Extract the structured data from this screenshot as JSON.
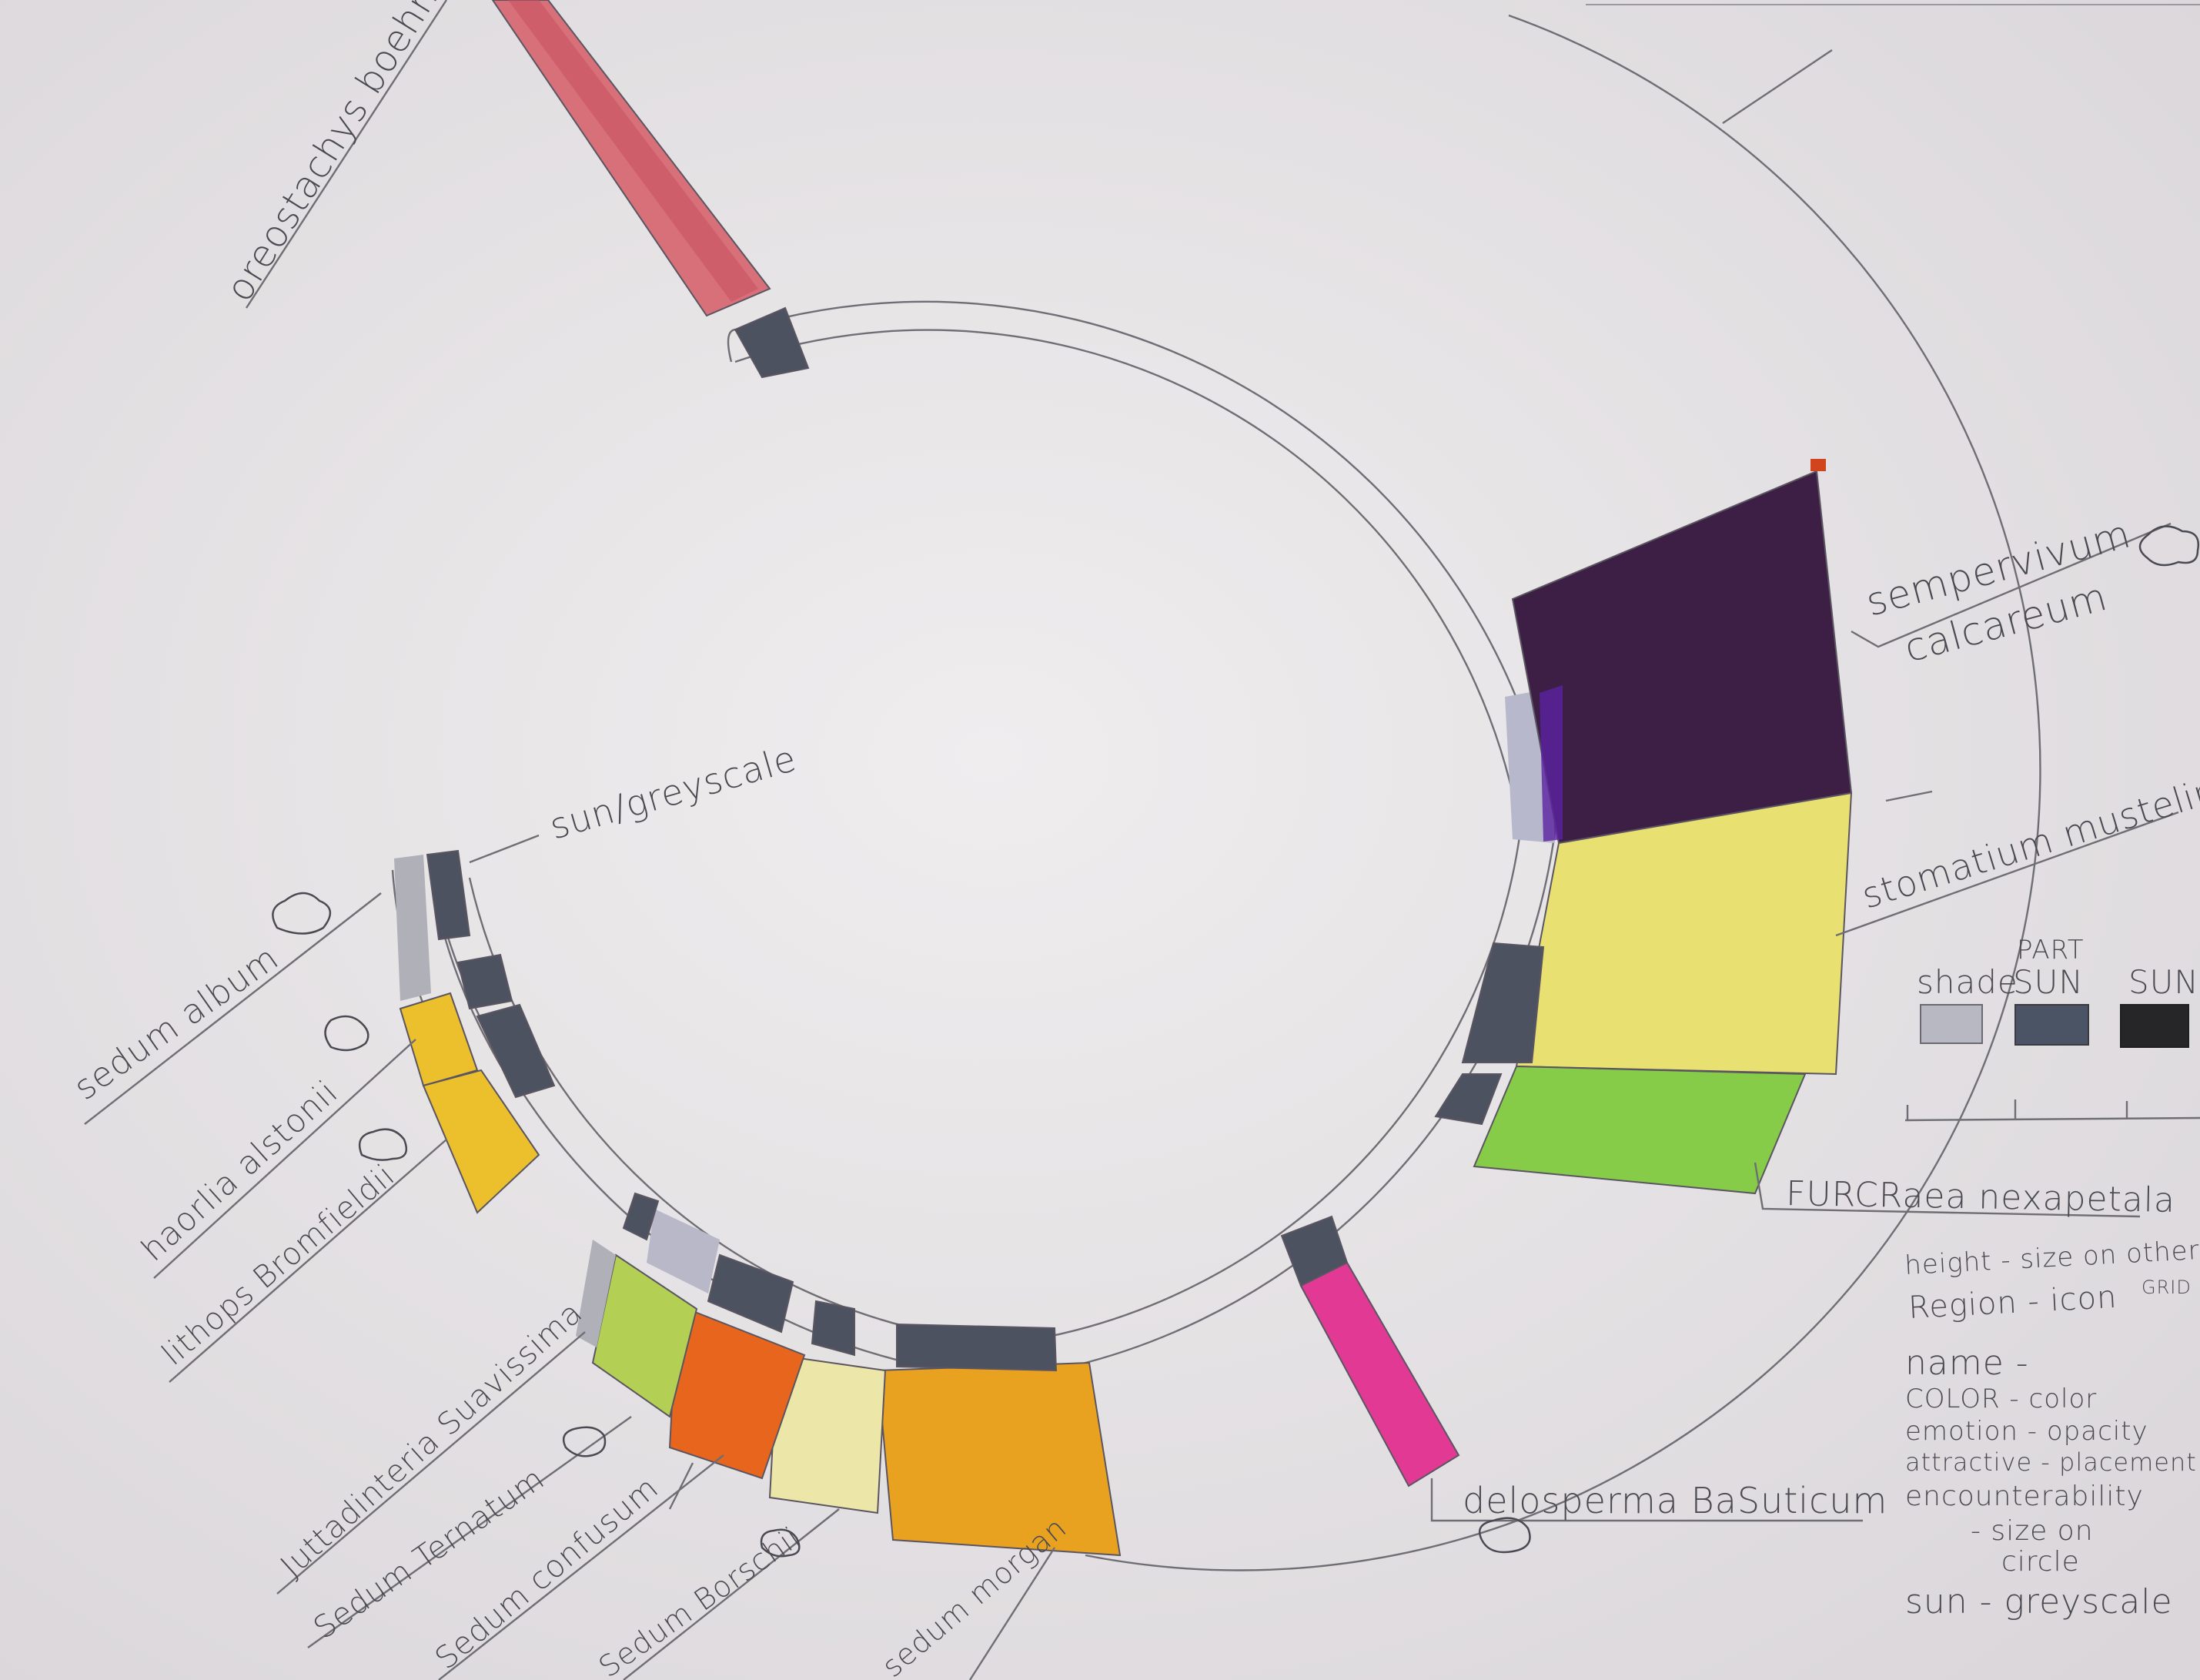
{
  "top_label": "oreostachys boehmeri",
  "sun_greyscale_note": "sun/greyscale",
  "right_labels": {
    "sempervivum_line1": "sempervivum",
    "sempervivum_line2": "calcareum",
    "stomatium": "stomatium mustelinum",
    "furcraea": "FURCRaea nexapetala",
    "delosperma": "delosperma BaSuticum"
  },
  "left_labels": {
    "sedum_album": "sedum album",
    "haworthia": "haorlia alstonii",
    "lithops": "lithops Bromfieldii",
    "juttadinteria": "Juttadinteria Suavissima",
    "sedum_ternatum": "Sedum Ternatum",
    "sedum_confusum": "Sedum confusum",
    "sedum_burrito": "Sedum Borschii",
    "sedum_morganianum": "sedum morgan"
  },
  "legend": {
    "shade_label": "shade",
    "part_sun_line1": "PART",
    "part_sun_line2": "SUN",
    "sun_label": "SUN",
    "shade_color": "#b8b8c2",
    "part_sun_color": "#4a5464",
    "sun_color": "#262628"
  },
  "notes": {
    "line1": "height - size on other",
    "line1_sub": "GRID",
    "line2": "Region - icon",
    "line3": "name -",
    "line4": "COLOR - color",
    "line5": "emotion - opacity",
    "line6": "attractive - placement",
    "line7": "encounterability",
    "line8": "- size on",
    "line9": "circle",
    "line10": "sun - greyscale"
  },
  "colors": {
    "paper": "#e9e6e8",
    "pink_red": "#d8707a",
    "purple": "#3d1f45",
    "yellow": "#e8e070",
    "green": "#86cc48",
    "magenta": "#e23a94",
    "orange": "#e9a220",
    "deep_orange": "#e8651e",
    "pale_yellow": "#ece7a8",
    "lime": "#b4d054",
    "gold": "#ecc02c",
    "grey": "#b0b0b8",
    "dark_grey": "#4c5260"
  }
}
